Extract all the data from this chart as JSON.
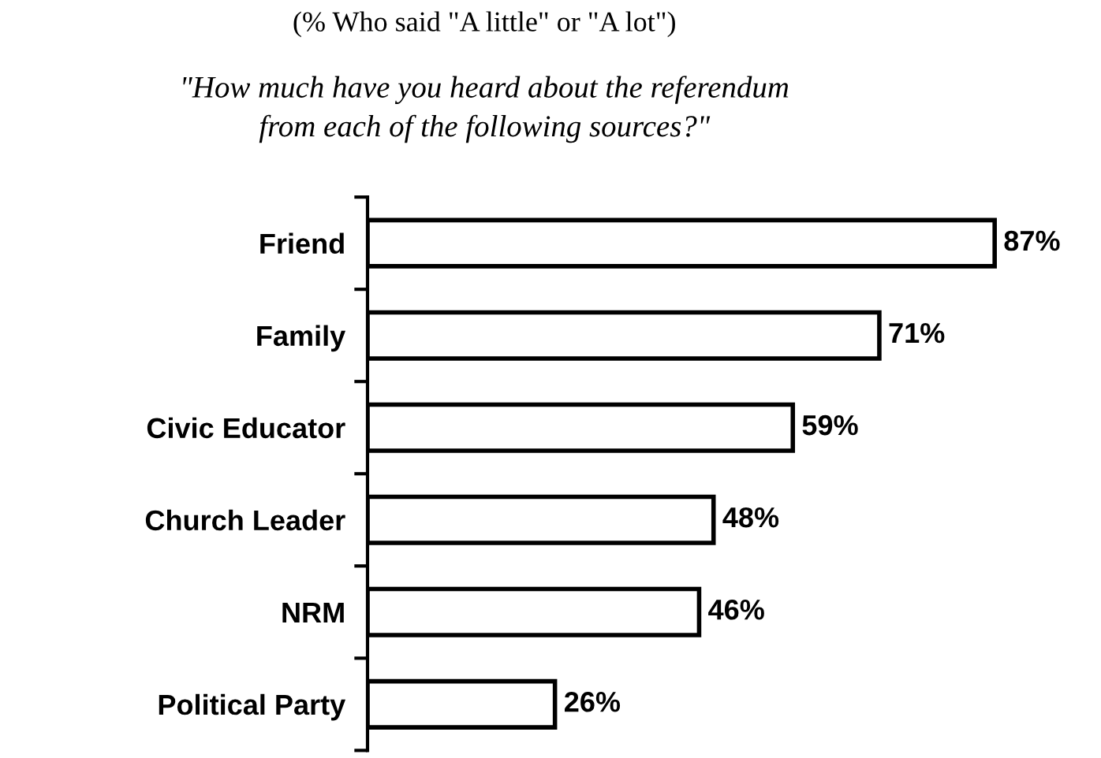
{
  "chart_data": {
    "type": "bar",
    "orientation": "horizontal",
    "title": "(% Who said \"A little\" or \"A lot\")",
    "subtitle": "\"How much have you heard about the referendum\nfrom each of the following sources?\"",
    "categories": [
      "Friend",
      "Family",
      "Civic Educator",
      "Church Leader",
      "NRM",
      "Political Party"
    ],
    "values": [
      87,
      71,
      59,
      48,
      46,
      26
    ],
    "value_labels": [
      "87%",
      "71%",
      "59%",
      "48%",
      "46%",
      "26%"
    ],
    "color": "#ffffff",
    "grid": false,
    "legend": false
  }
}
